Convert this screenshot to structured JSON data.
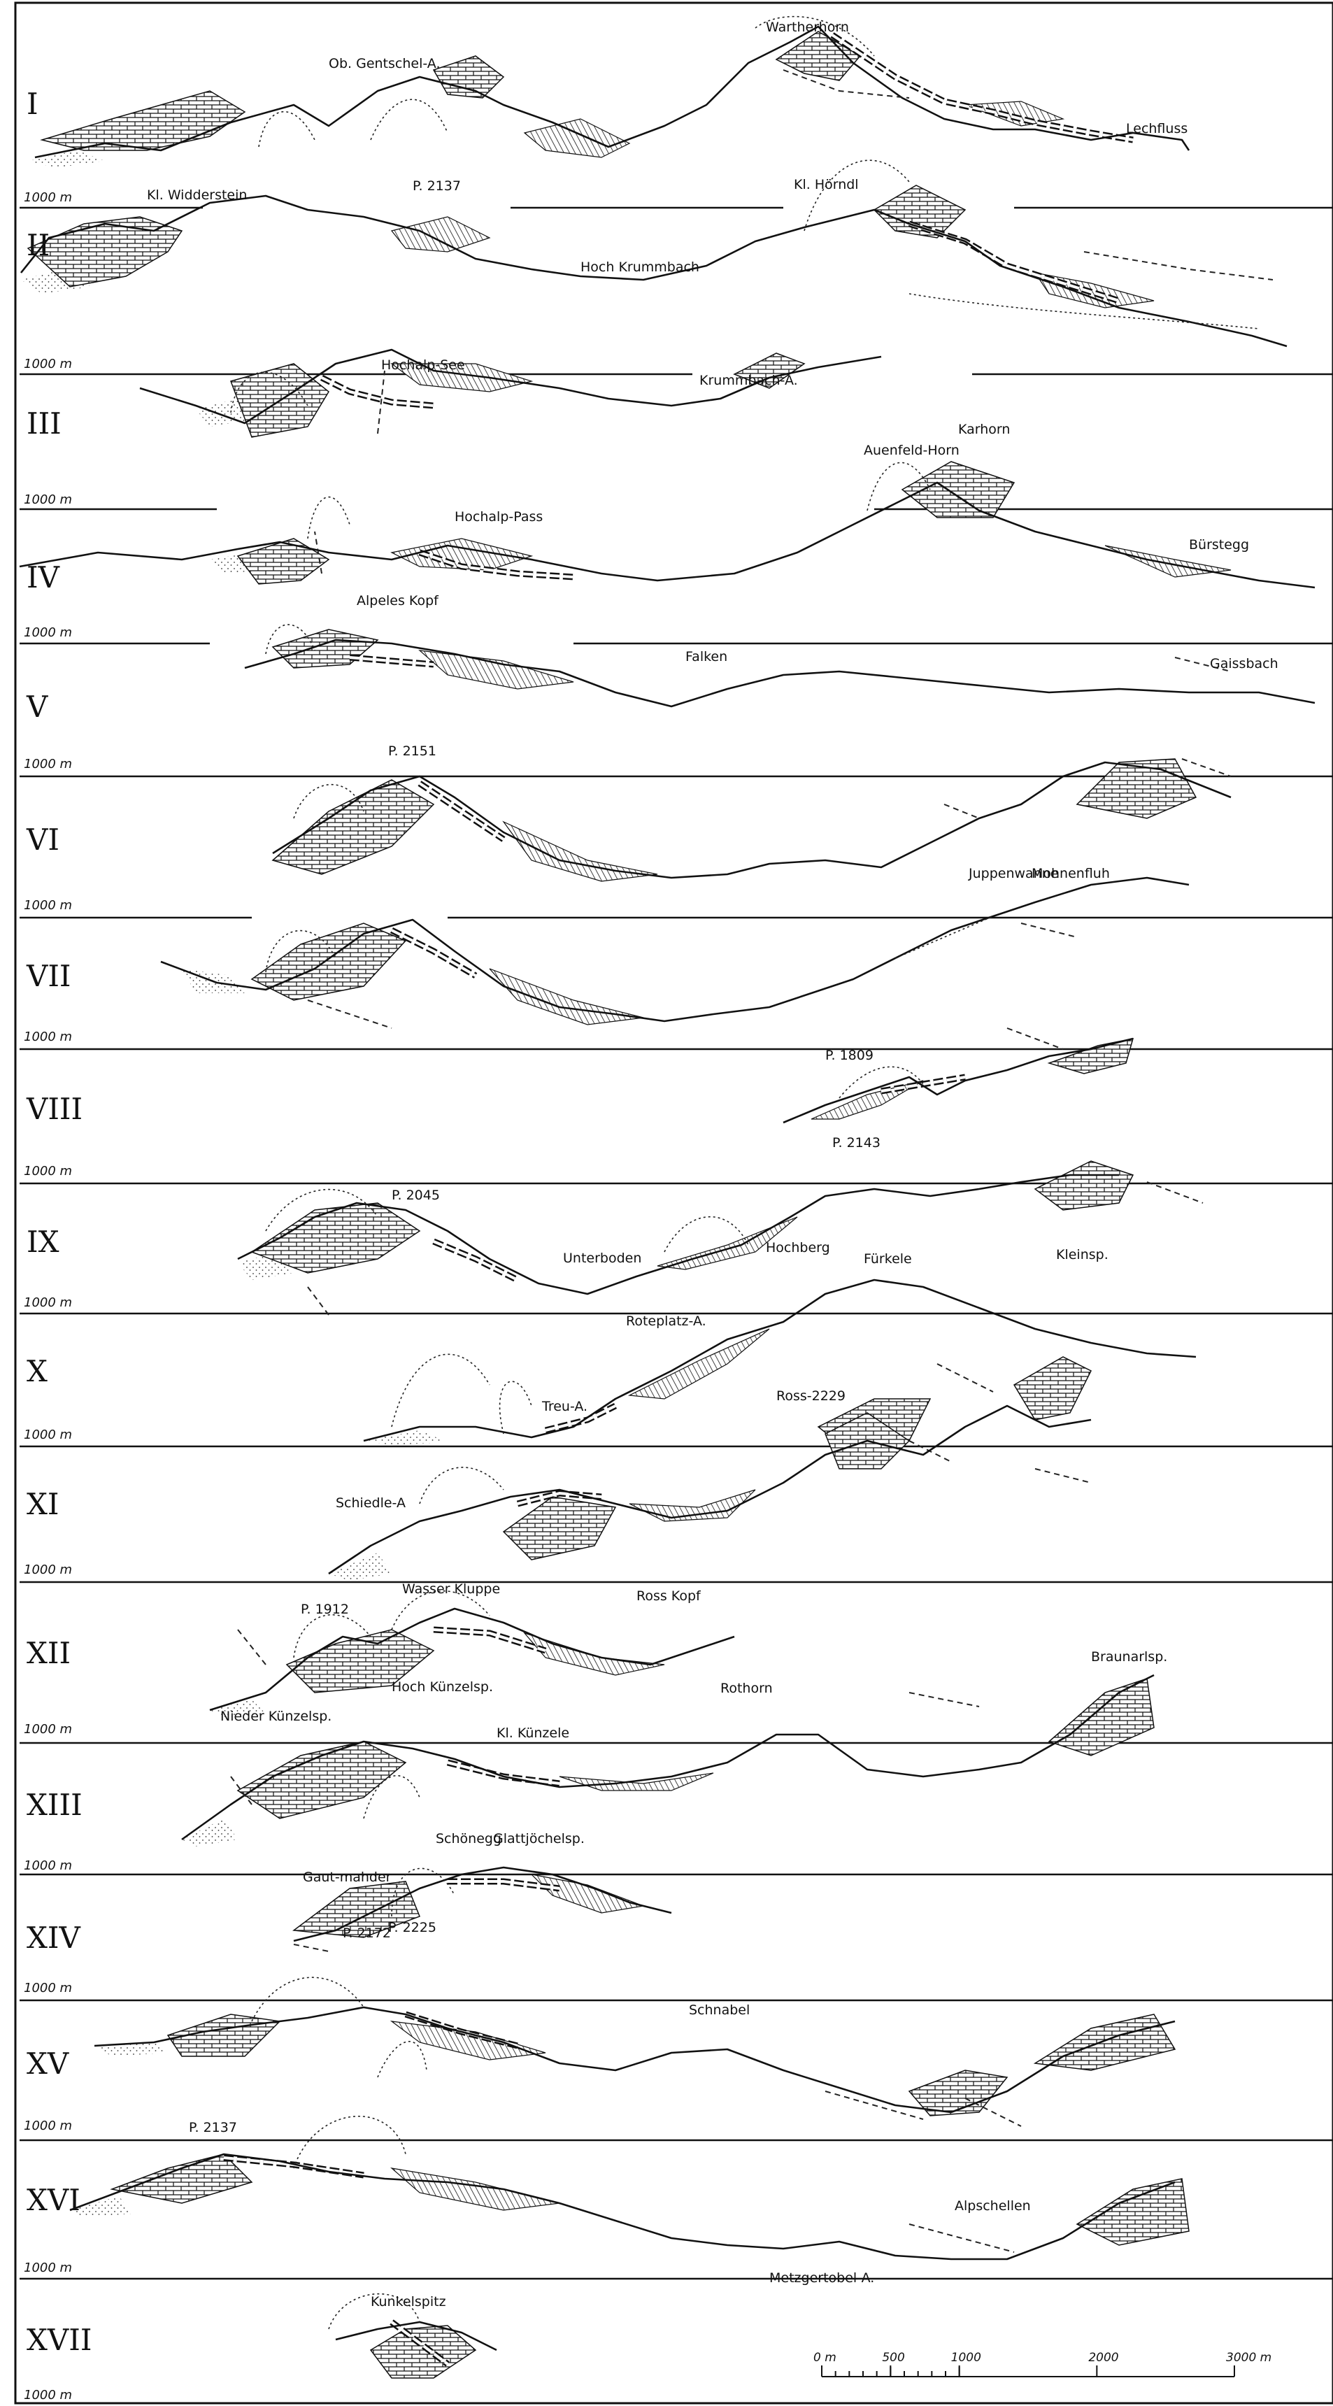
{
  "profiles": [
    {
      "numeral": "I",
      "elevation": "1000 m",
      "places": [
        "Ob. Gentschel-A.",
        "Wartherhorn",
        "Lechfluss",
        "Kl. Widderstein"
      ]
    },
    {
      "numeral": "II",
      "elevation": "1000 m",
      "places": [
        "P. 2137",
        "Kl. Hörndl",
        "Hoch Krummbach"
      ]
    },
    {
      "numeral": "III",
      "elevation": "1000 m",
      "places": [
        "Hochalp-See",
        "Krummbach-A."
      ]
    },
    {
      "numeral": "IV",
      "elevation": "1000 m",
      "places": [
        "Hochalp-Pass",
        "Auenfeld-Horn",
        "Karhorn",
        "Bürstegg"
      ]
    },
    {
      "numeral": "V",
      "elevation": "1000 m",
      "places": [
        "Alpeles Kopf",
        "Falken",
        "Gaissbach"
      ]
    },
    {
      "numeral": "VI",
      "elevation": "1000 m",
      "places": [
        "P. 2151",
        "Mohnenfluh"
      ]
    },
    {
      "numeral": "VII",
      "elevation": "1000 m",
      "places": [
        "Juppenwanne"
      ]
    },
    {
      "numeral": "VIII",
      "elevation": "1000 m",
      "places": [
        "P. 1809",
        "P. 2143"
      ]
    },
    {
      "numeral": "IX",
      "elevation": "1000 m",
      "places": [
        "P. 2045",
        "Unterboden",
        "Hochberg",
        "Kleinsp.",
        "Fürkele"
      ]
    },
    {
      "numeral": "X",
      "elevation": "1000 m",
      "places": [
        "Roteplatz-A.",
        "Treu-A.",
        "Ross-2229"
      ]
    },
    {
      "numeral": "XI",
      "elevation": "1000 m",
      "places": [
        "Schiedle-A"
      ]
    },
    {
      "numeral": "XII",
      "elevation": "1000 m",
      "places": [
        "P. 1912",
        "Wasser Kluppe",
        "Ross Kopf",
        "Braunarlsp."
      ]
    },
    {
      "numeral": "XIII",
      "elevation": "1000 m",
      "places": [
        "Nieder Künzelsp.",
        "Hoch Künzelsp.",
        "Kl. Künzele",
        "Rothorn"
      ]
    },
    {
      "numeral": "XIV",
      "elevation": "1000 m",
      "places": [
        "Schönegg",
        "Glattjöchelsp.",
        "Gaut-mahder"
      ]
    },
    {
      "numeral": "XV",
      "elevation": "1000 m",
      "places": [
        "P. 2172",
        "P. 2225",
        "Schnabel"
      ]
    },
    {
      "numeral": "XVI",
      "elevation": "1000 m",
      "places": [
        "P. 2137",
        "Alpschellen",
        "Metzgertobel-A."
      ]
    },
    {
      "numeral": "XVII",
      "elevation": "1000 m",
      "places": [
        "Kunkelspitz"
      ]
    }
  ],
  "scale": {
    "ticks": [
      "0 m",
      "500",
      "1000",
      "2000",
      "3000 m"
    ],
    "values": [
      0,
      500,
      1000,
      2000,
      3000
    ]
  }
}
